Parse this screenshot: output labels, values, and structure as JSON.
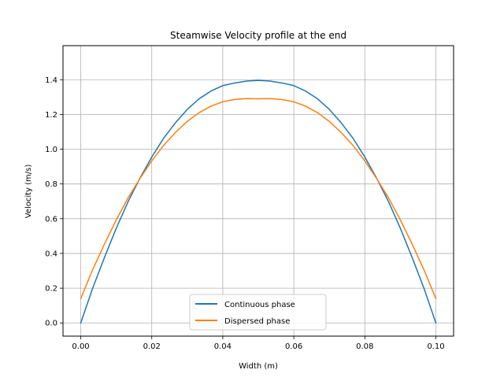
{
  "chart_data": {
    "type": "line",
    "title": "Steamwise Velocity profile at the end",
    "xlabel": "Width (m)",
    "ylabel": "Velocity (m/s)",
    "xlim": [
      -0.005,
      0.105
    ],
    "ylim": [
      -0.076,
      1.596
    ],
    "xticks": [
      0.0,
      0.02,
      0.04,
      0.06,
      0.08,
      0.1
    ],
    "xtick_labels": [
      "0.00",
      "0.02",
      "0.04",
      "0.06",
      "0.08",
      "0.10"
    ],
    "yticks": [
      0.0,
      0.2,
      0.4,
      0.6,
      0.8,
      1.0,
      1.2,
      1.4
    ],
    "ytick_labels": [
      "0.0",
      "0.2",
      "0.4",
      "0.6",
      "0.8",
      "1.0",
      "1.2",
      "1.4"
    ],
    "grid": true,
    "legend_position": "lower center",
    "series": [
      {
        "name": "Continuous phase",
        "color": "#1f77b4",
        "x": [
          0.0,
          0.0033,
          0.0067,
          0.01,
          0.0133,
          0.0167,
          0.02,
          0.0233,
          0.0267,
          0.03,
          0.0333,
          0.0367,
          0.04,
          0.0433,
          0.0467,
          0.05,
          0.0533,
          0.0567,
          0.06,
          0.0633,
          0.0667,
          0.07,
          0.0733,
          0.0767,
          0.08,
          0.0833,
          0.0867,
          0.09,
          0.0933,
          0.0967,
          0.1
        ],
        "y": [
          0.0,
          0.197,
          0.378,
          0.545,
          0.697,
          0.834,
          0.955,
          1.062,
          1.153,
          1.229,
          1.29,
          1.335,
          1.366,
          1.381,
          1.392,
          1.396,
          1.392,
          1.381,
          1.366,
          1.335,
          1.29,
          1.229,
          1.153,
          1.062,
          0.955,
          0.834,
          0.697,
          0.545,
          0.378,
          0.197,
          0.0
        ]
      },
      {
        "name": "Dispersed phase",
        "color": "#ff7f0e",
        "x": [
          0.0,
          0.0033,
          0.0067,
          0.01,
          0.0133,
          0.0167,
          0.02,
          0.0233,
          0.0267,
          0.03,
          0.0333,
          0.0367,
          0.04,
          0.0433,
          0.0467,
          0.05,
          0.0533,
          0.0567,
          0.06,
          0.0633,
          0.0667,
          0.07,
          0.0733,
          0.0767,
          0.08,
          0.0833,
          0.0867,
          0.09,
          0.0933,
          0.0967,
          0.1
        ],
        "y": [
          0.14,
          0.304,
          0.455,
          0.593,
          0.719,
          0.832,
          0.933,
          1.021,
          1.097,
          1.16,
          1.21,
          1.248,
          1.273,
          1.286,
          1.291,
          1.29,
          1.291,
          1.286,
          1.273,
          1.248,
          1.21,
          1.16,
          1.097,
          1.021,
          0.933,
          0.832,
          0.719,
          0.593,
          0.455,
          0.304,
          0.14
        ]
      }
    ]
  }
}
